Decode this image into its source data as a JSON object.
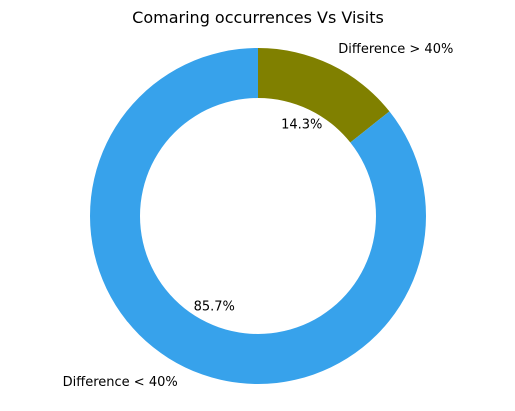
{
  "chart_data": {
    "type": "pie",
    "title": "Comaring occurrences Vs Visits",
    "donut": true,
    "start_angle_deg": 90,
    "direction": "clockwise",
    "slices": [
      {
        "label": "Difference > 40%",
        "value": 14.3,
        "pct_label": "14.3%",
        "color": "#808000"
      },
      {
        "label": "Difference < 40%",
        "value": 85.7,
        "pct_label": "85.7%",
        "color": "#37a2eb"
      }
    ]
  }
}
